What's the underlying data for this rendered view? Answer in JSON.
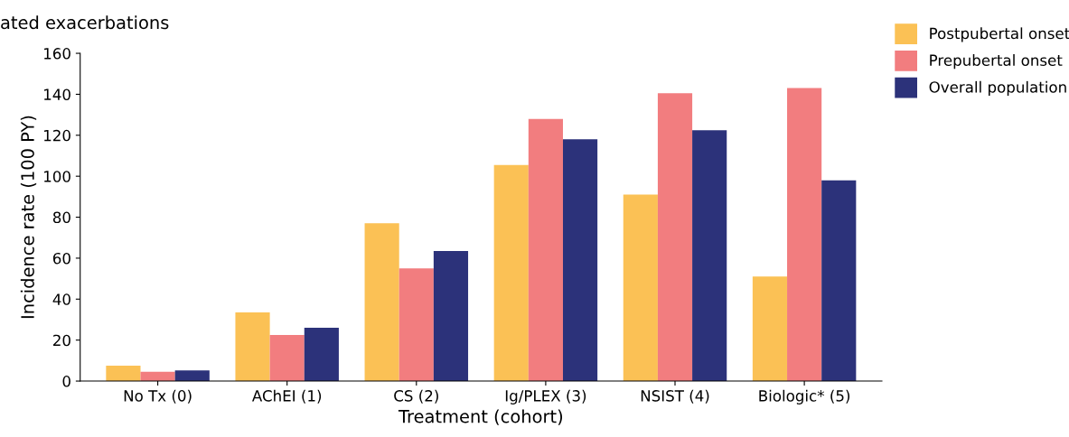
{
  "chart_data": {
    "type": "bar",
    "title": "ated exacerbations",
    "xlabel": "Treatment (cohort)",
    "ylabel": "Incidence rate (100 PY)",
    "categories": [
      "No Tx (0)",
      "AChEI (1)",
      "CS (2)",
      "Ig/PLEX (3)",
      "NSIST (4)",
      "Biologic* (5)"
    ],
    "series": [
      {
        "name": "Postpubertal onset",
        "color": "#fbc155",
        "values": [
          7.5,
          33.5,
          77,
          105.5,
          91,
          51
        ]
      },
      {
        "name": "Prepubertal onset",
        "color": "#f27d7f",
        "values": [
          4.5,
          22.5,
          55,
          128,
          140.5,
          143
        ]
      },
      {
        "name": "Overall population",
        "color": "#2c327a",
        "values": [
          5.2,
          26,
          63.5,
          118,
          122.5,
          98
        ]
      }
    ],
    "ylim": [
      0,
      160
    ],
    "yticks": [
      0,
      20,
      40,
      60,
      80,
      100,
      120,
      140,
      160
    ],
    "grid": false,
    "legend": "top right"
  }
}
